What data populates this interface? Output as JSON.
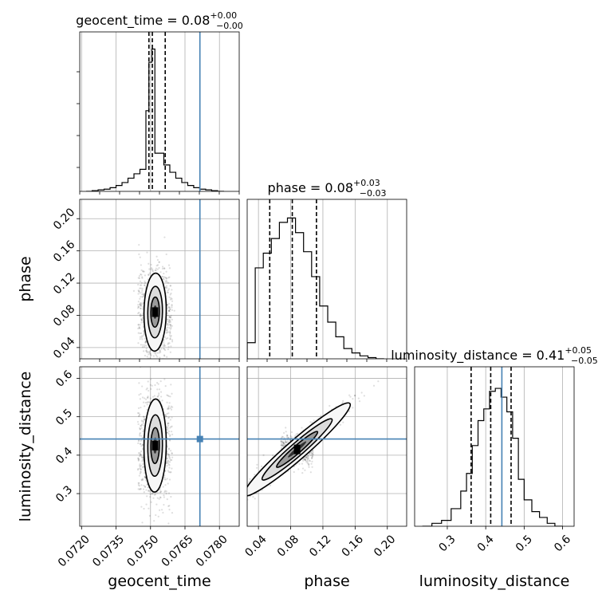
{
  "chart_data": {
    "type": "corner",
    "parameters": [
      "geocent_time",
      "phase",
      "luminosity_distance"
    ],
    "truths": [
      0.07715,
      null,
      0.442
    ],
    "truth_color": "#4682b4",
    "titles": [
      {
        "param": "geocent_time",
        "prefix": "geocent_time = ",
        "value": "0.08",
        "plus": "+0.00",
        "minus": "−0.00"
      },
      {
        "param": "phase",
        "prefix": "phase = ",
        "value": "0.08",
        "plus": "+0.03",
        "minus": "−0.03"
      },
      {
        "param": "luminosity_distance",
        "prefix": "luminosity_distance = ",
        "value": "0.41",
        "plus": "+0.05",
        "minus": "−0.05"
      }
    ],
    "axis_labels": {
      "x": [
        "geocent_time",
        "phase",
        "luminosity_distance"
      ],
      "y": [
        "phase",
        "luminosity_distance"
      ]
    },
    "ranges": {
      "geocent_time": [
        0.07192,
        0.07886
      ],
      "phase": [
        0.026,
        0.224
      ],
      "luminosity_distance": [
        0.215,
        0.63
      ]
    },
    "ticks": {
      "geocent_time": [
        "0.0720",
        "0.0735",
        "0.0750",
        "0.0765",
        "0.0780"
      ],
      "phase": [
        "0.04",
        "0.08",
        "0.12",
        "0.16",
        "0.20"
      ],
      "luminosity_distance_x": [
        "0.3",
        "0.4",
        "0.5",
        "0.6"
      ],
      "luminosity_distance_y": [
        "0.3",
        "0.4",
        "0.5",
        "0.6"
      ]
    },
    "quantiles": {
      "geocent_time": [
        0.07493,
        0.07508,
        0.07564
      ],
      "phase": [
        0.054,
        0.082,
        0.112
      ],
      "luminosity_distance": [
        0.362,
        0.413,
        0.466
      ]
    },
    "histograms": {
      "geocent_time": {
        "edges": [
          0.0722,
          0.07246,
          0.07272,
          0.07298,
          0.07324,
          0.0735,
          0.07376,
          0.07402,
          0.07428,
          0.07454,
          0.0748,
          0.07493,
          0.07506,
          0.07519,
          0.07532,
          0.07558,
          0.07584,
          0.0761,
          0.07636,
          0.07662,
          0.07688,
          0.07714,
          0.0774,
          0.07766,
          0.07792,
          0.0782
        ],
        "counts": [
          0,
          0.005,
          0.01,
          0.015,
          0.025,
          0.04,
          0.06,
          0.09,
          0.12,
          0.15,
          0.55,
          0.88,
          0.97,
          0.26,
          0.26,
          0.18,
          0.13,
          0.09,
          0.06,
          0.04,
          0.025,
          0.015,
          0.01,
          0.005,
          0
        ]
      },
      "phase": {
        "edges": [
          0.026,
          0.036,
          0.046,
          0.056,
          0.066,
          0.076,
          0.086,
          0.096,
          0.106,
          0.116,
          0.126,
          0.136,
          0.146,
          0.156,
          0.166,
          0.176,
          0.186,
          0.196
        ],
        "counts": [
          0.11,
          0.62,
          0.72,
          0.82,
          0.93,
          0.96,
          0.86,
          0.73,
          0.56,
          0.36,
          0.25,
          0.15,
          0.07,
          0.04,
          0.02,
          0.008,
          0
        ]
      },
      "luminosity_distance": {
        "edges": [
          0.235,
          0.26,
          0.285,
          0.31,
          0.335,
          0.35,
          0.365,
          0.38,
          0.395,
          0.41,
          0.425,
          0.44,
          0.455,
          0.47,
          0.485,
          0.5,
          0.52,
          0.54,
          0.56,
          0.58,
          0.6
        ],
        "counts": [
          0,
          0.02,
          0.04,
          0.12,
          0.24,
          0.36,
          0.55,
          0.72,
          0.8,
          0.92,
          0.94,
          0.88,
          0.78,
          0.6,
          0.32,
          0.18,
          0.1,
          0.06,
          0.02,
          0
        ]
      }
    },
    "joint": [
      {
        "x": "geocent_time",
        "y": "phase",
        "center": [
          0.0752,
          0.084
        ],
        "sigma": [
          0.00022,
          0.022
        ],
        "rho": 0.05,
        "tail_x": 0.00075,
        "tail_y": 0.03
      },
      {
        "x": "geocent_time",
        "y": "luminosity_distance",
        "center": [
          0.0752,
          0.425
        ],
        "sigma": [
          0.00022,
          0.055
        ],
        "rho": 0.05,
        "tail_x": 0.00075,
        "tail_y": 0.08
      },
      {
        "x": "phase",
        "y": "luminosity_distance",
        "center": [
          0.088,
          0.415
        ],
        "sigma": [
          0.03,
          0.055
        ],
        "rho": 0.96,
        "tail_x": 0.02,
        "tail_y": 0.02
      }
    ]
  }
}
